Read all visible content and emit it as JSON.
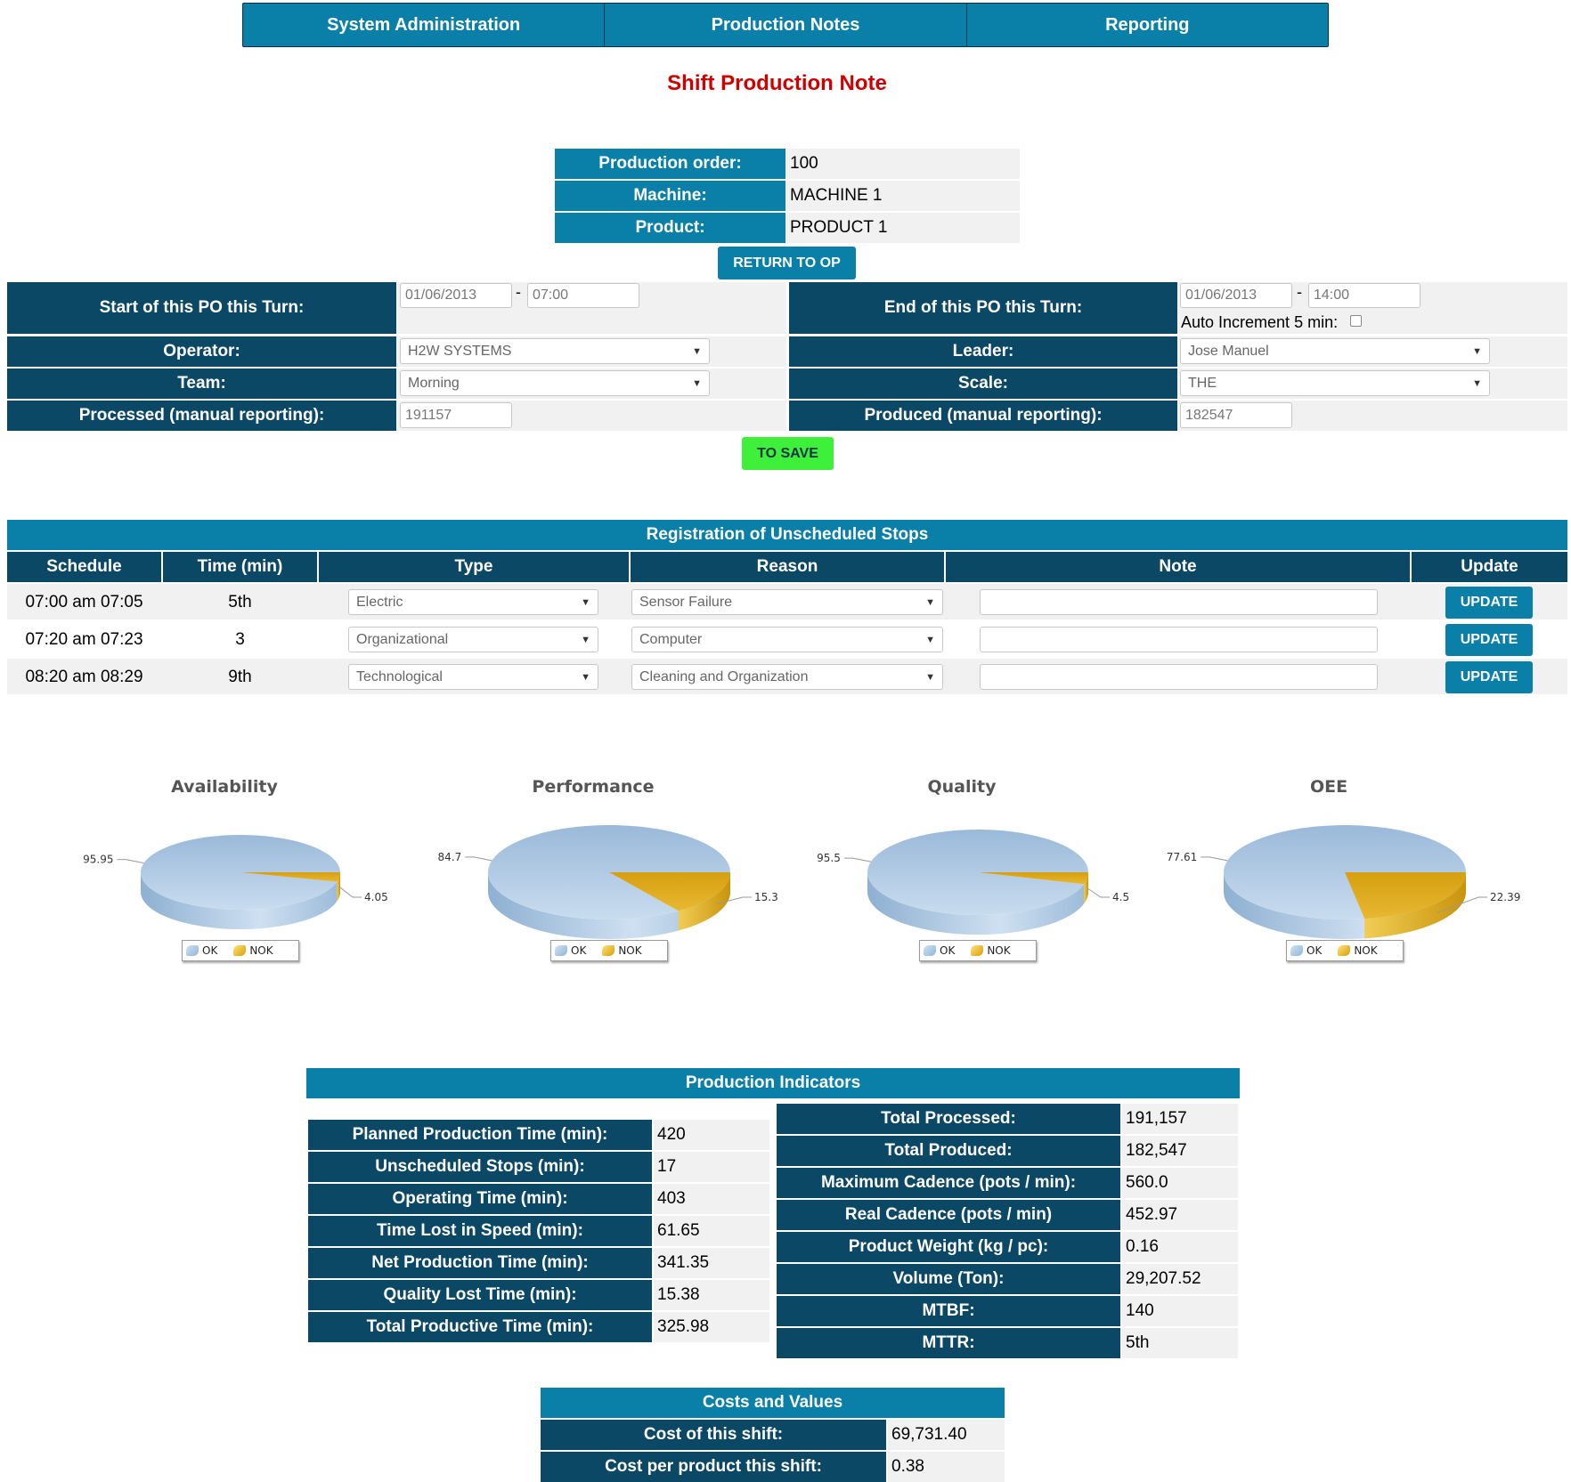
{
  "nav": {
    "items": [
      "System Administration",
      "Production Notes",
      "Reporting"
    ]
  },
  "page_title": "Shift Production Note",
  "order_info": {
    "production_order_label": "Production order:",
    "production_order_value": "100",
    "machine_label": "Machine:",
    "machine_value": "MACHINE 1",
    "product_label": "Product:",
    "product_value": "PRODUCT 1",
    "return_button": "RETURN TO OP"
  },
  "turn": {
    "start_label": "Start of this PO this Turn:",
    "start_date": "01/06/2013",
    "start_time": "07:00",
    "end_label": "End of this PO this Turn:",
    "end_date": "01/06/2013",
    "end_time": "14:00",
    "dash": "-",
    "auto_increment_label": "Auto Increment 5 min:",
    "operator_label": "Operator:",
    "operator_value": "H2W SYSTEMS",
    "leader_label": "Leader:",
    "leader_value": "Jose Manuel",
    "team_label": "Team:",
    "team_value": "Morning",
    "scale_label": "Scale:",
    "scale_value": "THE",
    "processed_label": "Processed (manual reporting):",
    "processed_value": "191157",
    "produced_label": "Produced (manual reporting):",
    "produced_value": "182547",
    "save_button": "TO SAVE"
  },
  "stops": {
    "title": "Registration of Unscheduled Stops",
    "columns": [
      "Schedule",
      "Time (min)",
      "Type",
      "Reason",
      "Note",
      "Update"
    ],
    "rows": [
      {
        "schedule": "07:00 am 07:05",
        "time": "5th",
        "type": "Electric",
        "reason": "Sensor Failure",
        "note": "",
        "button": "UPDATE"
      },
      {
        "schedule": "07:20 am 07:23",
        "time": "3",
        "type": "Organizational",
        "reason": "Computer",
        "note": "",
        "button": "UPDATE"
      },
      {
        "schedule": "08:20 am 08:29",
        "time": "9th",
        "type": "Technological",
        "reason": "Cleaning and Organization",
        "note": "",
        "button": "UPDATE"
      }
    ]
  },
  "colors": {
    "accent": "#0a7fa8",
    "navy": "#0b4866",
    "title_red": "#d00000",
    "save_green": "#3ff03a",
    "ok_blue": "#a9c6e3",
    "nok_gold": "#e0a812"
  },
  "chart_data": [
    {
      "type": "pie",
      "title": "Availability",
      "labels": [
        "OK",
        "NOK"
      ],
      "values": [
        95.95,
        4.05
      ]
    },
    {
      "type": "pie",
      "title": "Performance",
      "labels": [
        "OK",
        "NOK"
      ],
      "values": [
        84.7,
        15.3
      ]
    },
    {
      "type": "pie",
      "title": "Quality",
      "labels": [
        "OK",
        "NOK"
      ],
      "values": [
        95.5,
        4.5
      ]
    },
    {
      "type": "pie",
      "title": "OEE",
      "labels": [
        "OK",
        "NOK"
      ],
      "values": [
        77.61,
        22.39
      ]
    }
  ],
  "indicators": {
    "title": "Production Indicators",
    "left": [
      {
        "label": "Planned Production Time (min):",
        "value": "420"
      },
      {
        "label": "Unscheduled Stops (min):",
        "value": "17"
      },
      {
        "label": "Operating Time (min):",
        "value": "403"
      },
      {
        "label": "Time Lost in Speed (min):",
        "value": "61.65"
      },
      {
        "label": "Net Production Time (min):",
        "value": "341.35"
      },
      {
        "label": "Quality Lost Time (min):",
        "value": "15.38"
      },
      {
        "label": "Total Productive Time (min):",
        "value": "325.98"
      }
    ],
    "right": [
      {
        "label": "Total Processed:",
        "value": "191,157"
      },
      {
        "label": "Total Produced:",
        "value": "182,547"
      },
      {
        "label": "Maximum Cadence (pots / min):",
        "value": "560.0"
      },
      {
        "label": "Real Cadence (pots / min)",
        "value": "452.97"
      },
      {
        "label": "Product Weight (kg / pc):",
        "value": "0.16"
      },
      {
        "label": "Volume (Ton):",
        "value": "29,207.52"
      },
      {
        "label": "MTBF:",
        "value": "140"
      },
      {
        "label": "MTTR:",
        "value": "5th"
      }
    ]
  },
  "costs": {
    "title": "Costs and Values",
    "rows": [
      {
        "label": "Cost of this shift:",
        "value": "69,731.40"
      },
      {
        "label": "Cost per product this shift:",
        "value": "0.38"
      }
    ]
  }
}
